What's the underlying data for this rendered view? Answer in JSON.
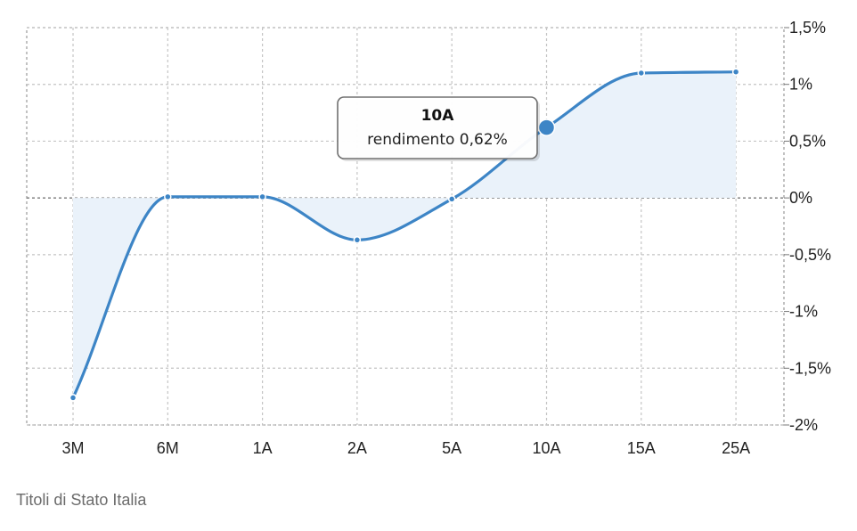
{
  "chart_data": {
    "type": "line",
    "categories": [
      "3M",
      "6M",
      "1A",
      "2A",
      "5A",
      "10A",
      "15A",
      "25A"
    ],
    "series": [
      {
        "values": [
          -1.76,
          0.01,
          0.01,
          -0.37,
          -0.01,
          0.62,
          1.1,
          1.11
        ]
      }
    ],
    "ylim": [
      -2,
      1.5
    ],
    "yticks": [
      1.5,
      1,
      0.5,
      0,
      -0.5,
      -1,
      -1.5,
      -2
    ],
    "ytick_labels": [
      "1,5%",
      "1%",
      "0,5%",
      "0%",
      "-0,5%",
      "-1%",
      "-1,5%",
      "-2%"
    ],
    "y_axis_position": "right",
    "grid": true,
    "line_color": "#3d85c6",
    "fill_color": "#eaf2fa",
    "tooltip": {
      "category": "10A",
      "text": "rendimento 0,62%"
    }
  },
  "caption": "Titoli di Stato Italia"
}
